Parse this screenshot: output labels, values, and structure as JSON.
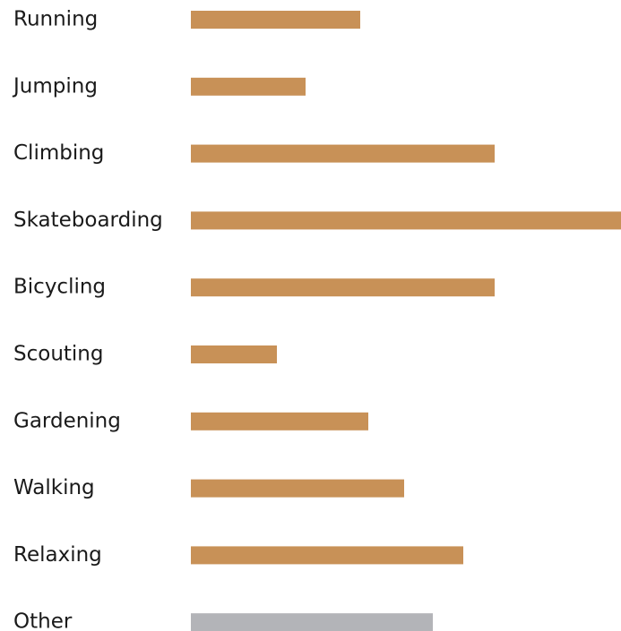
{
  "chart_data": {
    "type": "bar",
    "orientation": "horizontal",
    "categories": [
      "Running",
      "Jumping",
      "Climbing",
      "Skateboarding",
      "Bicycling",
      "Scouting",
      "Gardening",
      "Walking",
      "Relaxing",
      "Other"
    ],
    "values": [
      189,
      128,
      339,
      480,
      339,
      96,
      198,
      238,
      304,
      270
    ],
    "colors": [
      "#c89157",
      "#c89157",
      "#c89157",
      "#c89157",
      "#c89157",
      "#c89157",
      "#c89157",
      "#c89157",
      "#c89157",
      "#b3b4b8"
    ],
    "xlim": [
      0,
      480
    ]
  }
}
